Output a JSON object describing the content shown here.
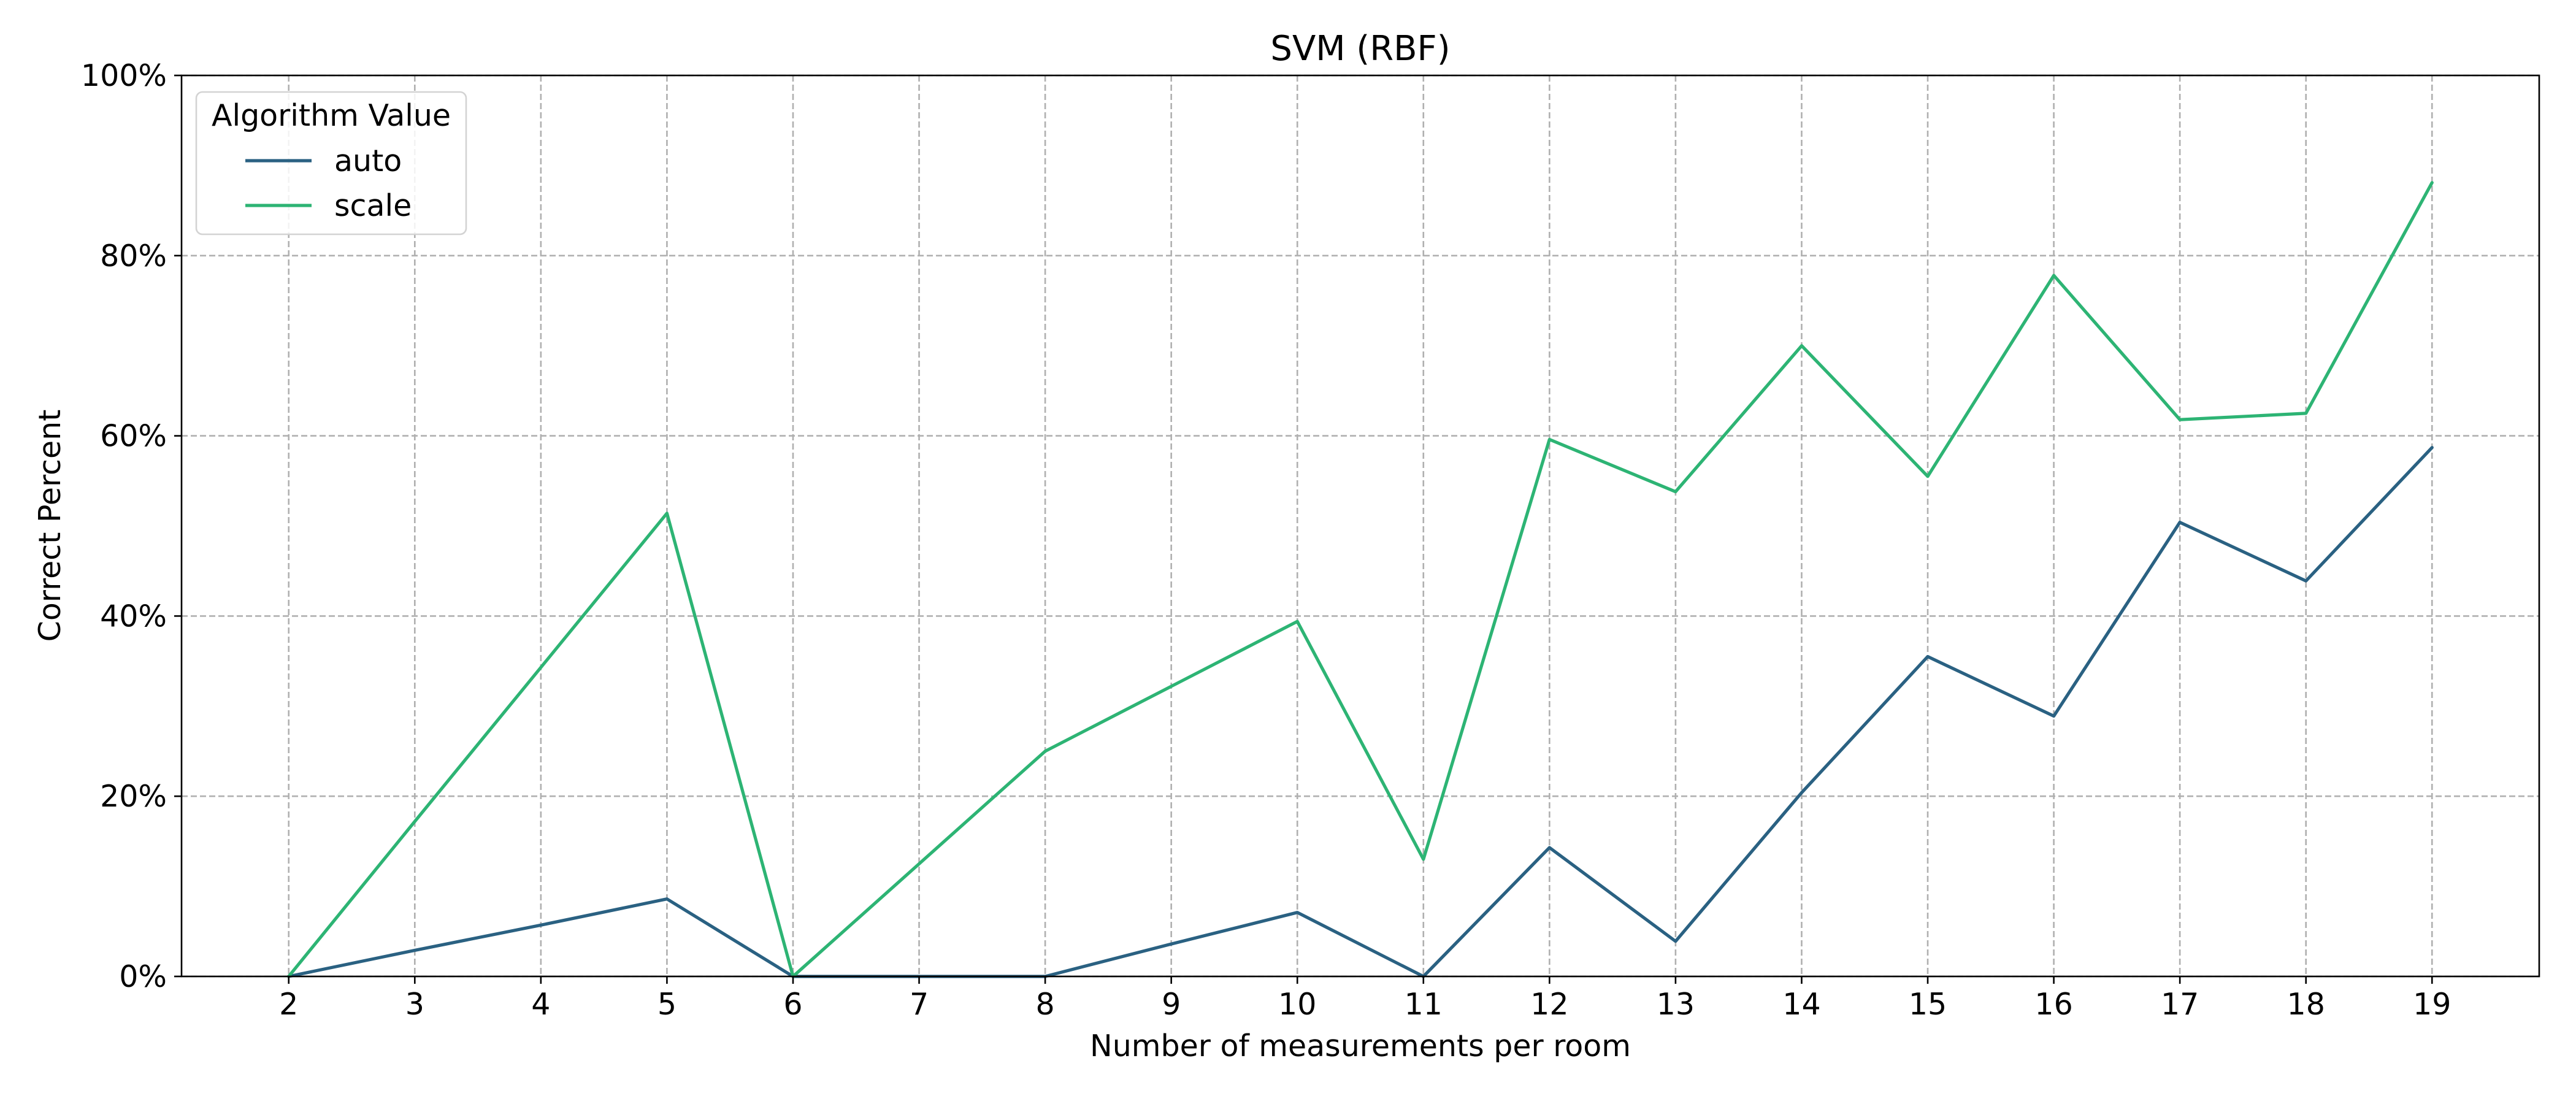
{
  "chart_data": {
    "type": "line",
    "title": "SVM (RBF)",
    "xlabel": "Number of measurements per room",
    "ylabel": "Correct Percent",
    "x": [
      2,
      3,
      4,
      5,
      6,
      7,
      8,
      9,
      10,
      11,
      12,
      13,
      14,
      15,
      16,
      17,
      18,
      19
    ],
    "xlim": [
      1.15,
      19.85
    ],
    "ylim": [
      0,
      100
    ],
    "yticks": [
      0,
      20,
      40,
      60,
      80,
      100
    ],
    "ytick_labels": [
      "0%",
      "20%",
      "40%",
      "60%",
      "80%",
      "100%"
    ],
    "grid": true,
    "legend": {
      "title": "Algorithm Value",
      "placement": "top-left"
    },
    "series": [
      {
        "name": "auto",
        "color": "#2a6182",
        "values": [
          0.0,
          2.9,
          5.7,
          8.6,
          0.0,
          0.0,
          0.0,
          3.6,
          7.1,
          0.0,
          14.3,
          3.9,
          20.4,
          35.5,
          28.9,
          50.4,
          43.9,
          58.7
        ]
      },
      {
        "name": "scale",
        "color": "#2db474",
        "values": [
          0.0,
          17.2,
          34.3,
          51.4,
          0.0,
          12.5,
          25.0,
          32.2,
          39.4,
          13.0,
          59.6,
          53.8,
          70.0,
          55.5,
          77.8,
          61.8,
          62.5,
          88.1
        ]
      }
    ]
  }
}
